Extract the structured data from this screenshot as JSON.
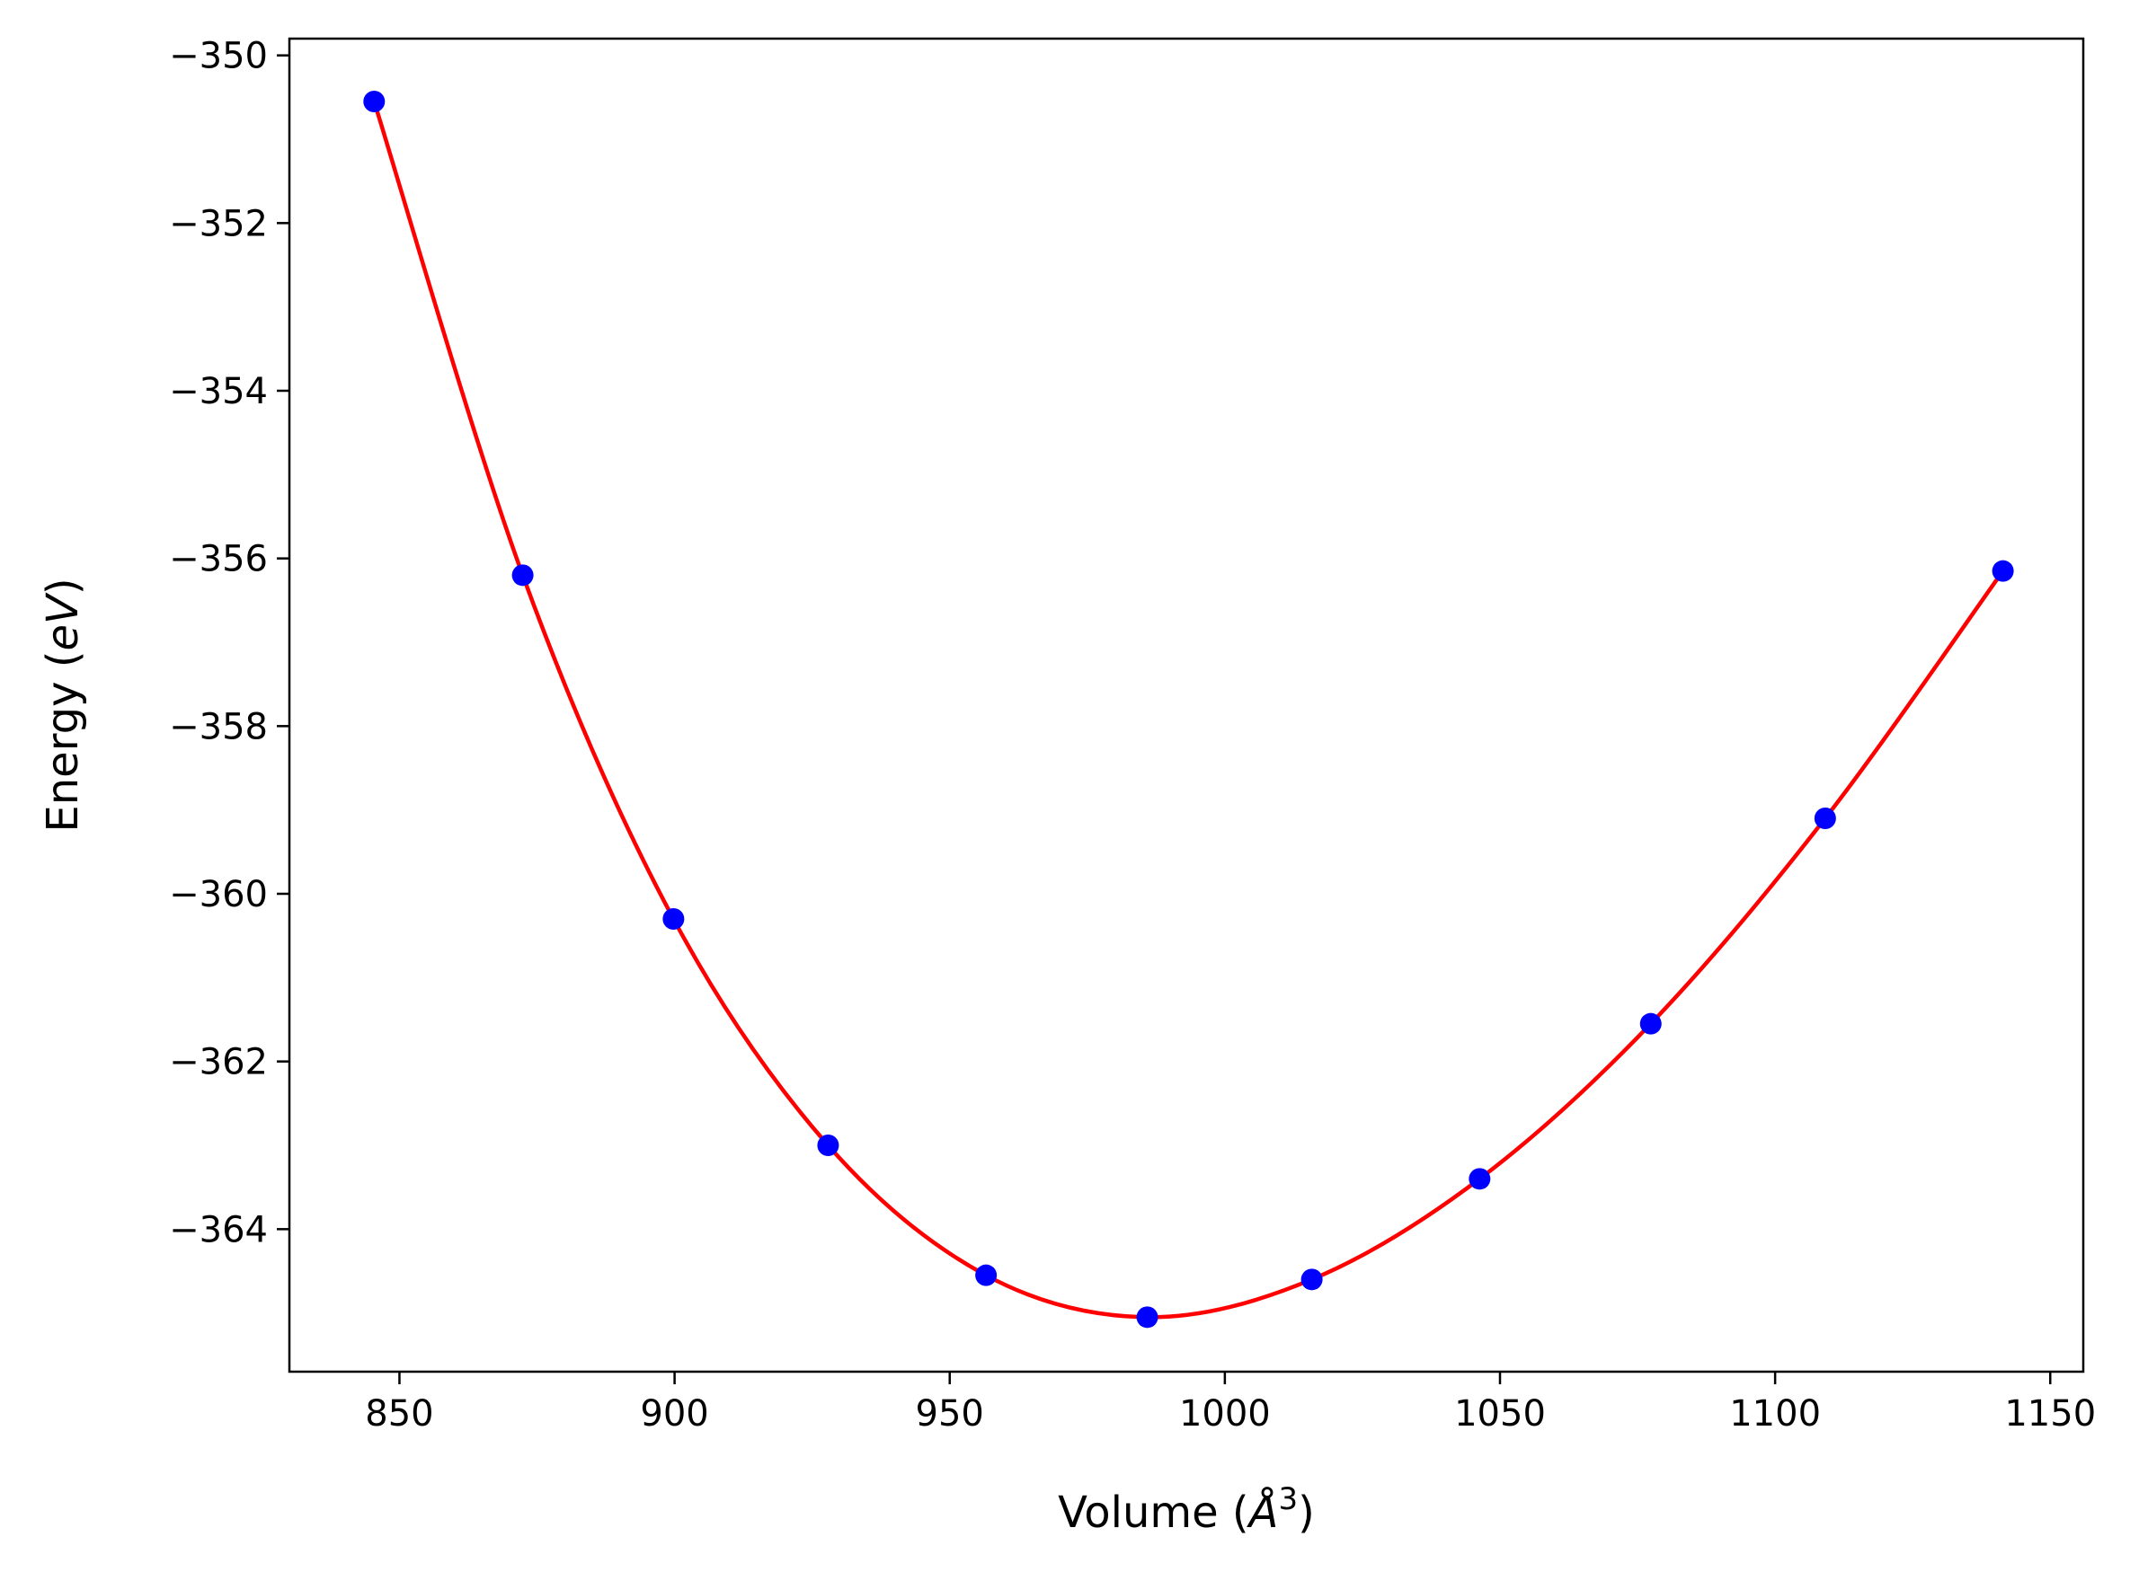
{
  "chart_data": {
    "type": "scatter",
    "title": "",
    "xlabel": "Volume (Å³)",
    "xlabel_parts": {
      "prefix": "Volume (",
      "symbol": "Å",
      "superscript": "3",
      "suffix": ")"
    },
    "ylabel": "Energy (eV)",
    "ylabel_parts": {
      "prefix": "Energy (",
      "symbol": "eV",
      "suffix": ")"
    },
    "xlim": [
      830,
      1156
    ],
    "ylim": [
      -365.7,
      -349.8
    ],
    "x_ticks": [
      850,
      900,
      950,
      1000,
      1050,
      1100,
      1150
    ],
    "x_tick_labels": [
      "850",
      "900",
      "950",
      "1000",
      "1050",
      "1100",
      "1150"
    ],
    "y_ticks": [
      -350,
      -352,
      -354,
      -356,
      -358,
      -360,
      -362,
      -364
    ],
    "y_tick_labels": [
      "−350",
      "−352",
      "−354",
      "−356",
      "−358",
      "−360",
      "−362",
      "−364"
    ],
    "grid": false,
    "series": [
      {
        "type": "scatter",
        "color": "#0000ff",
        "x": [
          845.4,
          872.4,
          899.8,
          927.9,
          956.6,
          985.9,
          1015.8,
          1046.3,
          1077.4,
          1109.1,
          1141.4
        ],
        "y": [
          -350.55,
          -356.2,
          -360.3,
          -363.0,
          -364.55,
          -365.05,
          -364.6,
          -363.4,
          -361.55,
          -359.1,
          -356.15
        ]
      },
      {
        "type": "line",
        "color": "#ff0000",
        "fit": "birch-murnaghan",
        "x": [
          845.4,
          1141.4
        ]
      }
    ]
  }
}
